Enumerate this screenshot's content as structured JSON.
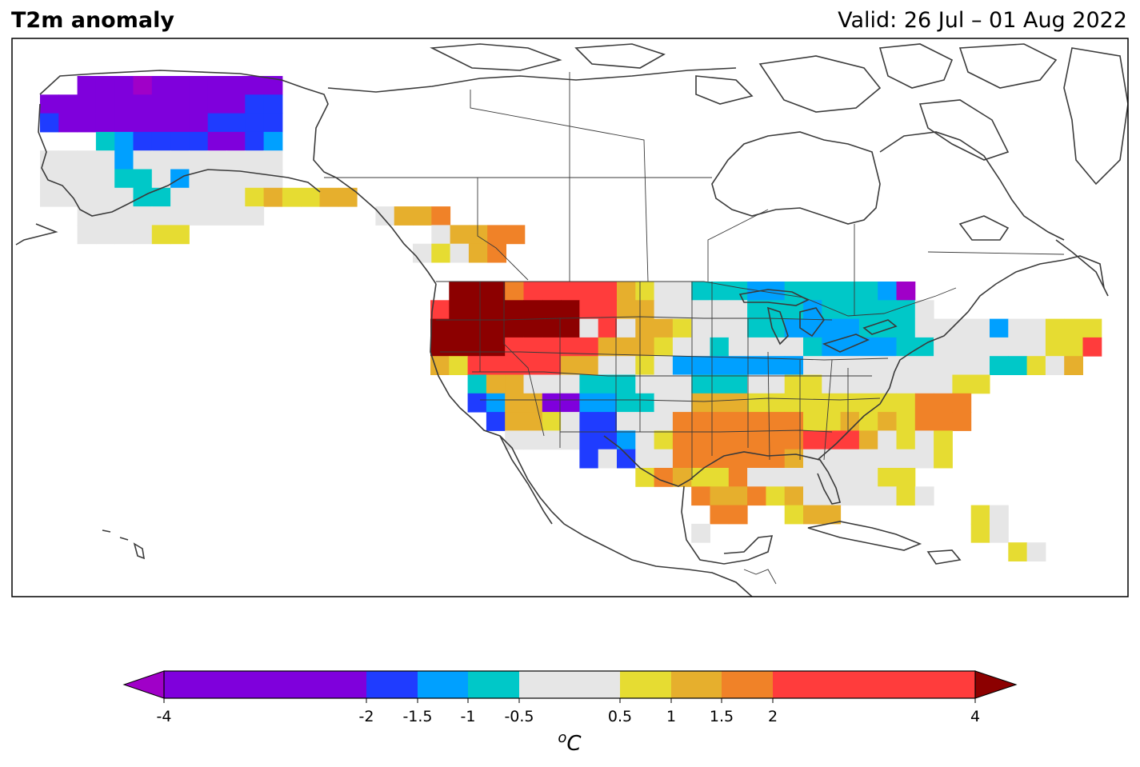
{
  "header": {
    "title": "T2m anomaly",
    "valid": "Valid: 26 Jul – 01 Aug 2022"
  },
  "colorbar": {
    "unit_base": "C",
    "unit_sup": "o",
    "bins": [
      {
        "from": -4,
        "to": -2,
        "color": "#7f00dc"
      },
      {
        "from": -2,
        "to": -1.5,
        "color": "#1f3cff"
      },
      {
        "from": -1.5,
        "to": -1,
        "color": "#00a0ff"
      },
      {
        "from": -1,
        "to": -0.5,
        "color": "#00c8c8"
      },
      {
        "from": -0.5,
        "to": 0.5,
        "color": "#e6e6e6"
      },
      {
        "from": 0.5,
        "to": 1,
        "color": "#e6dc32"
      },
      {
        "from": 1,
        "to": 1.5,
        "color": "#e6af2d"
      },
      {
        "from": 1.5,
        "to": 2,
        "color": "#f08228"
      },
      {
        "from": 2,
        "to": 4,
        "color": "#ff3c3c"
      }
    ],
    "under_color": "#a000c8",
    "over_color": "#8c0000",
    "ticks": [
      "-4",
      "-2",
      "-1.5",
      "-1",
      "-0.5",
      "0.5",
      "1",
      "1.5",
      "2",
      "4"
    ]
  },
  "map": {
    "land_line_color": "#3a3a3a",
    "border_color": "#3a3a3a"
  }
}
